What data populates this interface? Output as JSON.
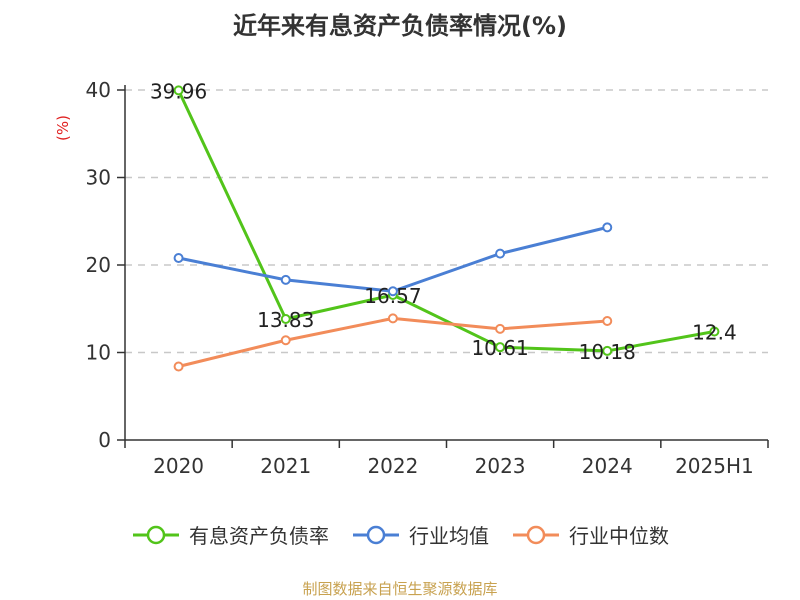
{
  "chart_data": {
    "type": "line",
    "title": "近年来有息资产负债率情况(%)",
    "ylabel": "(%)",
    "categories": [
      "2020",
      "2021",
      "2022",
      "2023",
      "2024",
      "2025H1"
    ],
    "ylim": [
      0,
      40
    ],
    "yticks": [
      0,
      10,
      20,
      30,
      40
    ],
    "grid": "horizontal-dashed",
    "legend_position": "bottom",
    "series": [
      {
        "name": "有息资产负债率",
        "color": "#52c41a",
        "values": [
          39.96,
          13.83,
          16.57,
          10.61,
          10.18,
          12.4
        ],
        "labels": [
          "39.96",
          "13.83",
          "16.57",
          "10.61",
          "10.18",
          "12.4"
        ]
      },
      {
        "name": "行业均值",
        "color": "#4a7fd4",
        "values": [
          20.8,
          18.3,
          17.0,
          21.3,
          24.3,
          null
        ],
        "labels": []
      },
      {
        "name": "行业中位数",
        "color": "#f28c5a",
        "values": [
          8.4,
          11.4,
          13.9,
          12.7,
          13.6,
          null
        ],
        "labels": []
      }
    ]
  },
  "source": "制图数据来自恒生聚源数据库"
}
